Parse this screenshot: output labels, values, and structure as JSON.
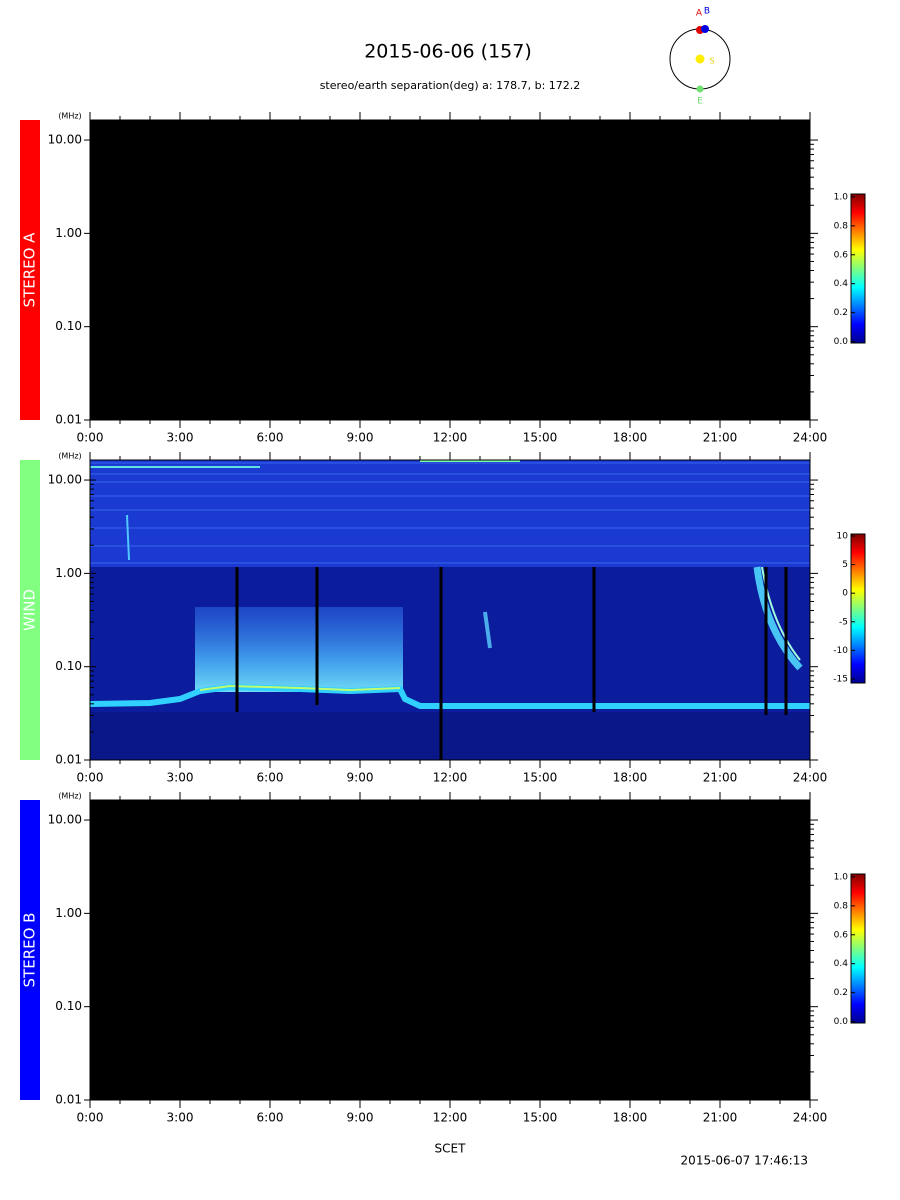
{
  "header": {
    "title": "2015-06-06 (157)",
    "subtitle": "stereo/earth separation(deg) a: 178.7, b: 172.2",
    "orbit_labels": {
      "a": "A",
      "b": "B",
      "sun": "S",
      "earth": "E"
    }
  },
  "chart_data": [
    {
      "type": "spectrogram",
      "panel_label": "STEREO A",
      "panel_color": "#ff0000",
      "ylabel": "(MHz)",
      "log_y": true,
      "ylim": [
        0.01,
        16.4
      ],
      "yticks": [
        {
          "value": 0.01,
          "label": "0.01"
        },
        {
          "value": 0.1,
          "label": "0.10"
        },
        {
          "value": 1,
          "label": "1.00"
        },
        {
          "value": 10,
          "label": "10.00"
        }
      ],
      "xlim": [
        0,
        24
      ],
      "xticks": [
        {
          "value": 0,
          "label": "0:00"
        },
        {
          "value": 3,
          "label": "3:00"
        },
        {
          "value": 6,
          "label": "6:00"
        },
        {
          "value": 9,
          "label": "9:00"
        },
        {
          "value": 12,
          "label": "12:00"
        },
        {
          "value": 15,
          "label": "15:00"
        },
        {
          "value": 18,
          "label": "18:00"
        },
        {
          "value": 21,
          "label": "21:00"
        },
        {
          "value": 24,
          "label": "24:00"
        }
      ],
      "colorbar": {
        "lim": [
          -0.01,
          1.02
        ],
        "ticks": [
          {
            "value": 0,
            "label": "0.0"
          },
          {
            "value": 0.2,
            "label": "0.2"
          },
          {
            "value": 0.4,
            "label": "0.4"
          },
          {
            "value": 0.6,
            "label": "0.6"
          },
          {
            "value": 0.8,
            "label": "0.8"
          },
          {
            "value": 1,
            "label": "1.0"
          }
        ]
      }
    },
    {
      "type": "spectrogram",
      "panel_label": "WIND",
      "panel_color": "#80ff80",
      "ylabel": "(MHz)",
      "log_y": true,
      "ylim": [
        0.01,
        16.4
      ],
      "yticks": [
        {
          "value": 0.01,
          "label": "0.01"
        },
        {
          "value": 0.1,
          "label": "0.10"
        },
        {
          "value": 1,
          "label": "1.00"
        },
        {
          "value": 10,
          "label": "10.00"
        }
      ],
      "xlim": [
        0,
        24
      ],
      "xticks": [
        {
          "value": 0,
          "label": "0:00"
        },
        {
          "value": 3,
          "label": "3:00"
        },
        {
          "value": 6,
          "label": "6:00"
        },
        {
          "value": 9,
          "label": "9:00"
        },
        {
          "value": 12,
          "label": "12:00"
        },
        {
          "value": 15,
          "label": "15:00"
        },
        {
          "value": 18,
          "label": "18:00"
        },
        {
          "value": 21,
          "label": "21:00"
        },
        {
          "value": 24,
          "label": "24:00"
        }
      ],
      "colorbar": {
        "lim": [
          -15.7,
          10.35
        ],
        "ticks": [
          -15,
          -10,
          -5,
          0,
          5,
          10
        ]
      }
    },
    {
      "type": "spectrogram",
      "panel_label": "STEREO B",
      "panel_color": "#0000ff",
      "ylabel": "(MHz)",
      "log_y": true,
      "ylim": [
        0.01,
        16.4
      ],
      "yticks": [
        {
          "value": 0.01,
          "label": "0.01"
        },
        {
          "value": 0.1,
          "label": "0.10"
        },
        {
          "value": 1,
          "label": "1.00"
        },
        {
          "value": 10,
          "label": "10.00"
        }
      ],
      "xlim": [
        0,
        24
      ],
      "xticks": [
        {
          "value": 0,
          "label": "0:00"
        },
        {
          "value": 3,
          "label": "3:00"
        },
        {
          "value": 6,
          "label": "6:00"
        },
        {
          "value": 9,
          "label": "9:00"
        },
        {
          "value": 12,
          "label": "12:00"
        },
        {
          "value": 15,
          "label": "15:00"
        },
        {
          "value": 18,
          "label": "18:00"
        },
        {
          "value": 21,
          "label": "21:00"
        },
        {
          "value": 24,
          "label": "24:00"
        }
      ],
      "colorbar": {
        "lim": [
          -0.01,
          1.02
        ],
        "ticks": [
          {
            "value": 0,
            "label": "0.0"
          },
          {
            "value": 0.2,
            "label": "0.2"
          },
          {
            "value": 0.4,
            "label": "0.4"
          },
          {
            "value": 0.6,
            "label": "0.6"
          },
          {
            "value": 0.8,
            "label": "0.8"
          },
          {
            "value": 1,
            "label": "1.0"
          }
        ]
      }
    }
  ],
  "footer": {
    "xlabel": "SCET",
    "timestamp": "2015-06-07 17:46:13"
  }
}
